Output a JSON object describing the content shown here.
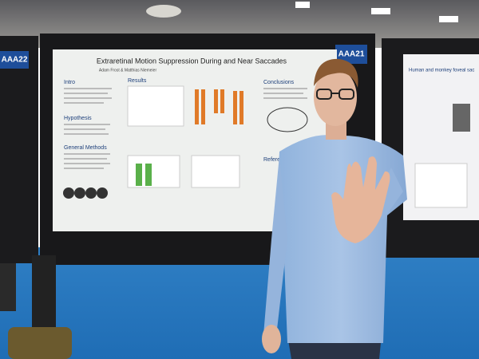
{
  "signs": [
    "AAA22",
    "AAA21"
  ],
  "poster": {
    "title": "Extraretinal Motion Suppression During and Near Saccades",
    "authors": "Adam Frost & Matthias Niemeier",
    "sections": [
      "Intro",
      "Results",
      "Conclusions",
      "Hypothesis",
      "General Methods",
      "References"
    ]
  },
  "right_poster": {
    "title": "Human and monkey foveal sac"
  }
}
